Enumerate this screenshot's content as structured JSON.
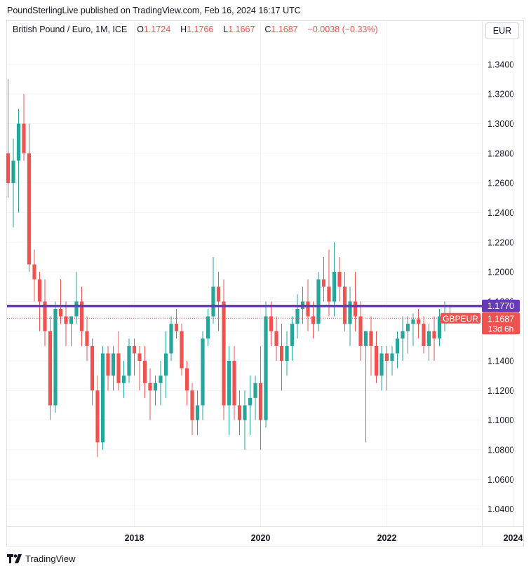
{
  "header": {
    "published_text": "PoundSterlingLive published on TradingView.com, Feb 16, 2024 16:17 UTC"
  },
  "legend": {
    "symbol": "British Pound / Euro, 1M, ICE",
    "o_label": "O",
    "o_value": "1.1724",
    "h_label": "H",
    "h_value": "1.1766",
    "l_label": "L",
    "l_value": "1.1667",
    "c_label": "C",
    "c_value": "1.1687",
    "change": "−0.0038 (−0.33%)"
  },
  "currency_button": "EUR",
  "footer": {
    "brand": "TradingView"
  },
  "colors": {
    "up": "#26a69a",
    "down": "#ef5350",
    "hline": "#673ab7",
    "grid": "#f0f3fa"
  },
  "chart_data": {
    "type": "candlestick",
    "symbol": "GBPEUR",
    "interval": "1M",
    "y_axis": {
      "range": [
        1.028,
        1.356
      ],
      "ticks": [
        "1.3400",
        "1.3200",
        "1.3000",
        "1.2800",
        "1.2600",
        "1.2400",
        "1.2200",
        "1.2000",
        "1.1800",
        "1.1600",
        "1.1400",
        "1.1200",
        "1.1000",
        "1.0800",
        "1.0600",
        "1.0400"
      ],
      "side": "right"
    },
    "x_axis": {
      "ticks": [
        "2018",
        "2020",
        "2022",
        "2024"
      ]
    },
    "horizontal_line": {
      "value": 1.177,
      "label": "1.1770"
    },
    "last_price": {
      "symbol_label": "GBPEUR",
      "value": "1.1687",
      "countdown": "13d 6h"
    },
    "start": "2016-01",
    "candles": [
      [
        1.28,
        1.33,
        1.25,
        1.26
      ],
      [
        1.26,
        1.29,
        1.23,
        1.275
      ],
      [
        1.275,
        1.31,
        1.24,
        1.3
      ],
      [
        1.3,
        1.32,
        1.275,
        1.28
      ],
      [
        1.28,
        1.3,
        1.2,
        1.205
      ],
      [
        1.205,
        1.215,
        1.18,
        1.195
      ],
      [
        1.195,
        1.2,
        1.16,
        1.18
      ],
      [
        1.18,
        1.195,
        1.15,
        1.16
      ],
      [
        1.16,
        1.17,
        1.1,
        1.11
      ],
      [
        1.11,
        1.18,
        1.105,
        1.175
      ],
      [
        1.175,
        1.195,
        1.165,
        1.17
      ],
      [
        1.17,
        1.18,
        1.15,
        1.165
      ],
      [
        1.165,
        1.17,
        1.15,
        1.17
      ],
      [
        1.17,
        1.2,
        1.165,
        1.18
      ],
      [
        1.18,
        1.19,
        1.15,
        1.16
      ],
      [
        1.16,
        1.17,
        1.14,
        1.15
      ],
      [
        1.15,
        1.155,
        1.11,
        1.12
      ],
      [
        1.12,
        1.13,
        1.075,
        1.085
      ],
      [
        1.085,
        1.15,
        1.08,
        1.145
      ],
      [
        1.145,
        1.15,
        1.12,
        1.13
      ],
      [
        1.13,
        1.15,
        1.12,
        1.145
      ],
      [
        1.145,
        1.16,
        1.12,
        1.125
      ],
      [
        1.125,
        1.14,
        1.115,
        1.13
      ],
      [
        1.13,
        1.155,
        1.125,
        1.15
      ],
      [
        1.15,
        1.155,
        1.13,
        1.145
      ],
      [
        1.145,
        1.15,
        1.12,
        1.14
      ],
      [
        1.14,
        1.15,
        1.115,
        1.125
      ],
      [
        1.125,
        1.135,
        1.1,
        1.12
      ],
      [
        1.12,
        1.13,
        1.11,
        1.125
      ],
      [
        1.125,
        1.14,
        1.11,
        1.13
      ],
      [
        1.13,
        1.16,
        1.115,
        1.145
      ],
      [
        1.145,
        1.17,
        1.14,
        1.165
      ],
      [
        1.165,
        1.175,
        1.155,
        1.16
      ],
      [
        1.16,
        1.165,
        1.13,
        1.135
      ],
      [
        1.135,
        1.14,
        1.11,
        1.12
      ],
      [
        1.12,
        1.125,
        1.09,
        1.1
      ],
      [
        1.1,
        1.12,
        1.09,
        1.11
      ],
      [
        1.11,
        1.16,
        1.1,
        1.155
      ],
      [
        1.155,
        1.175,
        1.15,
        1.17
      ],
      [
        1.17,
        1.21,
        1.165,
        1.19
      ],
      [
        1.19,
        1.2,
        1.16,
        1.18
      ],
      [
        1.18,
        1.195,
        1.1,
        1.11
      ],
      [
        1.11,
        1.15,
        1.09,
        1.14
      ],
      [
        1.14,
        1.15,
        1.1,
        1.11
      ],
      [
        1.11,
        1.12,
        1.09,
        1.1
      ],
      [
        1.1,
        1.12,
        1.08,
        1.11
      ],
      [
        1.11,
        1.13,
        1.09,
        1.115
      ],
      [
        1.115,
        1.13,
        1.1,
        1.125
      ],
      [
        1.125,
        1.15,
        1.08,
        1.1
      ],
      [
        1.1,
        1.18,
        1.095,
        1.17
      ],
      [
        1.17,
        1.18,
        1.15,
        1.16
      ],
      [
        1.16,
        1.17,
        1.14,
        1.15
      ],
      [
        1.15,
        1.165,
        1.12,
        1.14
      ],
      [
        1.14,
        1.16,
        1.13,
        1.15
      ],
      [
        1.15,
        1.17,
        1.14,
        1.165
      ],
      [
        1.165,
        1.185,
        1.155,
        1.175
      ],
      [
        1.175,
        1.19,
        1.165,
        1.18
      ],
      [
        1.18,
        1.195,
        1.16,
        1.17
      ],
      [
        1.17,
        1.18,
        1.155,
        1.165
      ],
      [
        1.165,
        1.2,
        1.16,
        1.195
      ],
      [
        1.195,
        1.21,
        1.18,
        1.19
      ],
      [
        1.19,
        1.215,
        1.17,
        1.18
      ],
      [
        1.18,
        1.22,
        1.17,
        1.2
      ],
      [
        1.2,
        1.21,
        1.18,
        1.19
      ],
      [
        1.19,
        1.2,
        1.16,
        1.165
      ],
      [
        1.165,
        1.19,
        1.15,
        1.18
      ],
      [
        1.18,
        1.2,
        1.16,
        1.17
      ],
      [
        1.17,
        1.18,
        1.14,
        1.15
      ],
      [
        1.15,
        1.16,
        1.085,
        1.16
      ],
      [
        1.16,
        1.17,
        1.13,
        1.15
      ],
      [
        1.15,
        1.16,
        1.125,
        1.13
      ],
      [
        1.13,
        1.15,
        1.12,
        1.145
      ],
      [
        1.145,
        1.15,
        1.12,
        1.14
      ],
      [
        1.14,
        1.15,
        1.13,
        1.145
      ],
      [
        1.145,
        1.16,
        1.135,
        1.155
      ],
      [
        1.155,
        1.17,
        1.14,
        1.16
      ],
      [
        1.16,
        1.17,
        1.145,
        1.165
      ],
      [
        1.165,
        1.172,
        1.15,
        1.168
      ],
      [
        1.168,
        1.175,
        1.155,
        1.165
      ],
      [
        1.165,
        1.17,
        1.145,
        1.15
      ],
      [
        1.15,
        1.165,
        1.14,
        1.16
      ],
      [
        1.16,
        1.17,
        1.14,
        1.155
      ],
      [
        1.155,
        1.175,
        1.15,
        1.17
      ],
      [
        1.17,
        1.18,
        1.16,
        1.172
      ],
      [
        1.172,
        1.177,
        1.1667,
        1.1687
      ]
    ]
  }
}
